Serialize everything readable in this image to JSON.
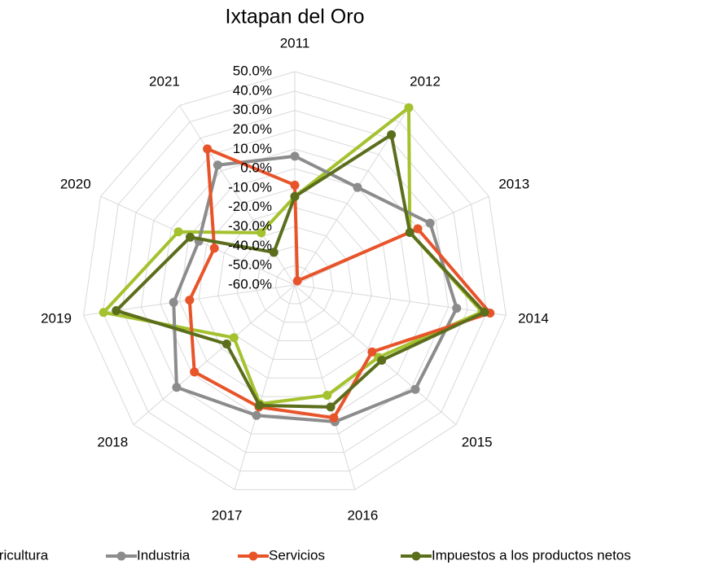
{
  "chart_data": {
    "type": "radar",
    "title": "Ixtapan  del Oro",
    "categories": [
      "2011",
      "2012",
      "2013",
      "2014",
      "2015",
      "2016",
      "2017",
      "2018",
      "2019",
      "2020",
      "2021"
    ],
    "series": [
      {
        "name": "Agricultura",
        "color": "#a4c12e",
        "values": [
          -14.4,
          48.7,
          5.2,
          37.5,
          -3.0,
          -0.7,
          3.9,
          -18.5,
          39.6,
          6.0,
          -28.0
        ]
      },
      {
        "name": "Industria",
        "color": "#8c8c8c",
        "values": [
          6.4,
          -0.2,
          16.7,
          24.3,
          22.2,
          13.5,
          10.1,
          20.6,
          3.1,
          -5.6,
          13.5
        ]
      },
      {
        "name": "Servicios",
        "color": "#e8542a",
        "values": [
          -8.5,
          -57.5,
          9.7,
          41.7,
          -7.3,
          11.4,
          5.6,
          8.5,
          -5.2,
          -14.4,
          23.4
        ]
      },
      {
        "name": "Impuestos a los productos netos",
        "color": "#5b6e1c",
        "values": [
          -14.4,
          32.1,
          5.2,
          38.8,
          -0.7,
          5.6,
          4.7,
          -13.5,
          33.0,
          -0.7,
          -40.0
        ]
      }
    ],
    "ylim": [
      -60,
      50
    ],
    "yticks": [
      {
        "value": -60,
        "label": "-60.0%"
      },
      {
        "value": -50,
        "label": "-50.0%"
      },
      {
        "value": -40,
        "label": "-40.0%"
      },
      {
        "value": -30,
        "label": "-30.0%"
      },
      {
        "value": -20,
        "label": "-20.0%"
      },
      {
        "value": -10,
        "label": "-10.0%"
      },
      {
        "value": 0,
        "label": "0.0%"
      },
      {
        "value": 10,
        "label": "10.0%"
      },
      {
        "value": 20,
        "label": "20.0%"
      },
      {
        "value": 30,
        "label": "30.0%"
      },
      {
        "value": 40,
        "label": "40.0%"
      },
      {
        "value": 50,
        "label": "50.0%"
      }
    ],
    "grid": true,
    "legend": "bottom"
  }
}
